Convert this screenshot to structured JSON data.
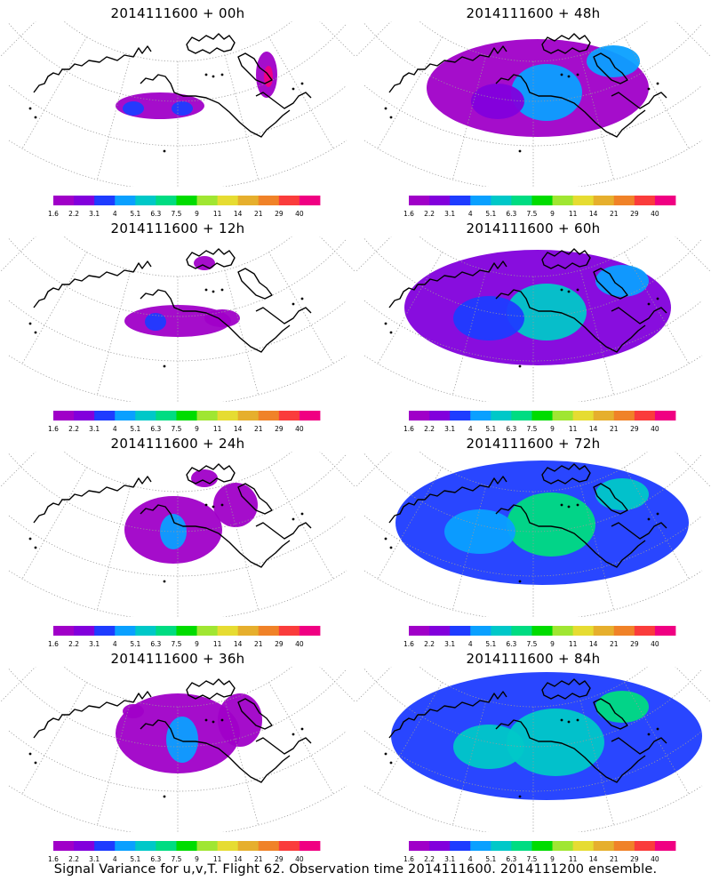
{
  "figure": {
    "caption": "Signal Variance for u,v,T. Flight 62. Observation time 2014111600. 2014111200 ensemble."
  },
  "colorbar": {
    "labels": [
      "1.6",
      "2.2",
      "3.1",
      "4",
      "5.1",
      "6.3",
      "7.5",
      "9",
      "11",
      "14",
      "21",
      "29",
      "40"
    ],
    "colors": [
      "#a000c8",
      "#8200dc",
      "#1e3cff",
      "#0aa0ff",
      "#00c8c8",
      "#00dc82",
      "#00dc00",
      "#a0e632",
      "#e6dc32",
      "#e6af2d",
      "#f08228",
      "#fa3c3c",
      "#f00082"
    ]
  },
  "panels": [
    {
      "title": "2014111600 + 00h",
      "lead_hours": 0
    },
    {
      "title": "2014111600 + 48h",
      "lead_hours": 48
    },
    {
      "title": "2014111600 + 12h",
      "lead_hours": 12
    },
    {
      "title": "2014111600 + 60h",
      "lead_hours": 60
    },
    {
      "title": "2014111600 + 24h",
      "lead_hours": 24
    },
    {
      "title": "2014111600 + 72h",
      "lead_hours": 72
    },
    {
      "title": "2014111600 + 36h",
      "lead_hours": 36
    },
    {
      "title": "2014111600 + 84h",
      "lead_hours": 84
    }
  ]
}
